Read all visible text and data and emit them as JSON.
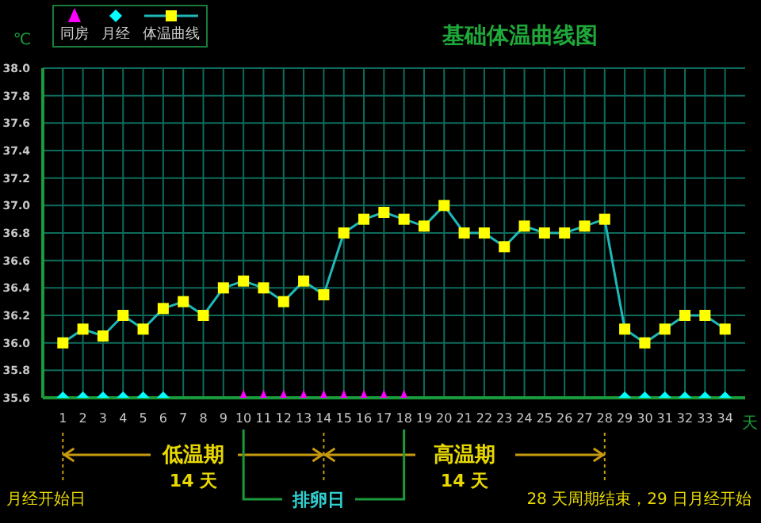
{
  "chart_data": {
    "type": "line",
    "title": "基础体温曲线图",
    "xlabel": "天",
    "ylabel": "℃",
    "x": [
      1,
      2,
      3,
      4,
      5,
      6,
      7,
      8,
      9,
      10,
      11,
      12,
      13,
      14,
      15,
      16,
      17,
      18,
      19,
      20,
      21,
      22,
      23,
      24,
      25,
      26,
      27,
      28,
      29,
      30,
      31,
      32,
      33,
      34
    ],
    "xlim": [
      0,
      35
    ],
    "xticks": [
      1,
      2,
      3,
      4,
      5,
      6,
      7,
      8,
      9,
      10,
      11,
      12,
      13,
      14,
      15,
      16,
      17,
      18,
      19,
      20,
      21,
      22,
      23,
      24,
      25,
      26,
      27,
      28,
      29,
      30,
      31,
      32,
      33,
      34
    ],
    "ylim": [
      35.6,
      38.0
    ],
    "yticks": [
      35.6,
      35.8,
      {
        "value": 36,
        "label": "36.0"
      },
      36.2,
      36.4,
      36.6,
      36.8,
      {
        "value": 37,
        "label": "37.0"
      },
      37.2,
      37.4,
      37.6,
      37.8,
      {
        "value": 38,
        "label": "38.0"
      }
    ],
    "grid": true,
    "legend": "top left",
    "series": [
      {
        "name": "同房",
        "type": "scatter",
        "marker": "triangle",
        "color": "#ff00ff",
        "values": [
          null,
          null,
          null,
          null,
          null,
          null,
          null,
          null,
          null,
          35.6,
          35.6,
          35.6,
          35.6,
          35.6,
          35.6,
          35.6,
          35.6,
          35.6,
          null,
          null,
          null,
          null,
          null,
          null,
          null,
          null,
          null,
          null,
          null,
          null,
          null,
          null,
          null,
          null
        ]
      },
      {
        "name": "月经",
        "type": "scatter",
        "marker": "diamond",
        "color": "#00ffff",
        "values": [
          35.6,
          35.6,
          35.6,
          35.6,
          35.6,
          35.6,
          null,
          null,
          null,
          null,
          null,
          null,
          null,
          null,
          null,
          null,
          null,
          null,
          null,
          null,
          null,
          null,
          null,
          null,
          null,
          null,
          null,
          null,
          35.6,
          35.6,
          35.6,
          35.6,
          35.6,
          35.6
        ]
      },
      {
        "name": "体温曲线",
        "marker": "square",
        "color": "#1fb8b8",
        "colors": [
          "#ffff00",
          "#ffff00",
          "#ffff00",
          "#ffff00",
          "#ffff00",
          "#ffff00",
          "#ffff00",
          "#ffff00",
          "#ffff00",
          "#ffff00",
          "#ffff00",
          "#ffff00",
          "#ffff00",
          "#ffff00",
          "#ffff00",
          "#ffff00",
          "#ffff00",
          "#ffff00",
          "#ffff00",
          "#ffff00",
          "#ffff00",
          "#ffff00",
          "#ffff00",
          "#ffff00",
          "#ffff00",
          "#ffff00",
          "#ffff00",
          "#ffff00",
          "#ffff00",
          "#ffff00",
          "#ffff00",
          "#ffff00",
          "#ffff00",
          "#ffff00"
        ],
        "values": [
          36.0,
          36.1,
          36.05,
          36.2,
          36.1,
          36.25,
          36.3,
          36.2,
          36.4,
          36.45,
          36.4,
          36.3,
          36.45,
          36.35,
          36.8,
          36.9,
          36.95,
          36.9,
          36.85,
          37.0,
          36.8,
          36.8,
          36.7,
          36.85,
          36.8,
          36.8,
          36.85,
          36.9,
          36.1,
          36.0,
          36.1,
          36.2,
          36.2,
          36.1
        ]
      }
    ],
    "annotations": [
      "低温期",
      "14 天",
      "高温期",
      "14 天",
      "排卵日",
      "月经开始日",
      "28 天周期结束，29 日月经开始"
    ]
  }
}
